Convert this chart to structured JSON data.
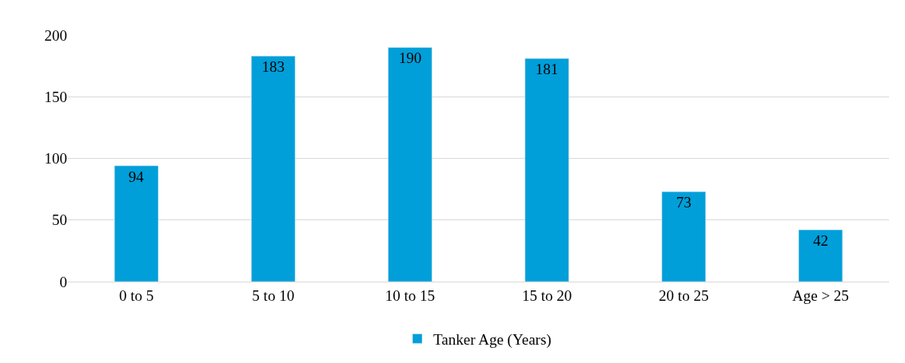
{
  "chart_data": {
    "type": "bar",
    "categories": [
      "0 to 5",
      "5 to 10",
      "10 to 15",
      "15 to 20",
      "20 to 25",
      "Age > 25"
    ],
    "series": [
      {
        "name": "Tanker Age (Years)",
        "color": "#009fd9",
        "values": [
          94,
          183,
          190,
          181,
          73,
          42
        ]
      }
    ],
    "ylim": [
      0,
      200
    ],
    "yticks": [
      0,
      50,
      100,
      150,
      200
    ],
    "grid": "y",
    "legend": "bottom",
    "data_labels": true
  }
}
